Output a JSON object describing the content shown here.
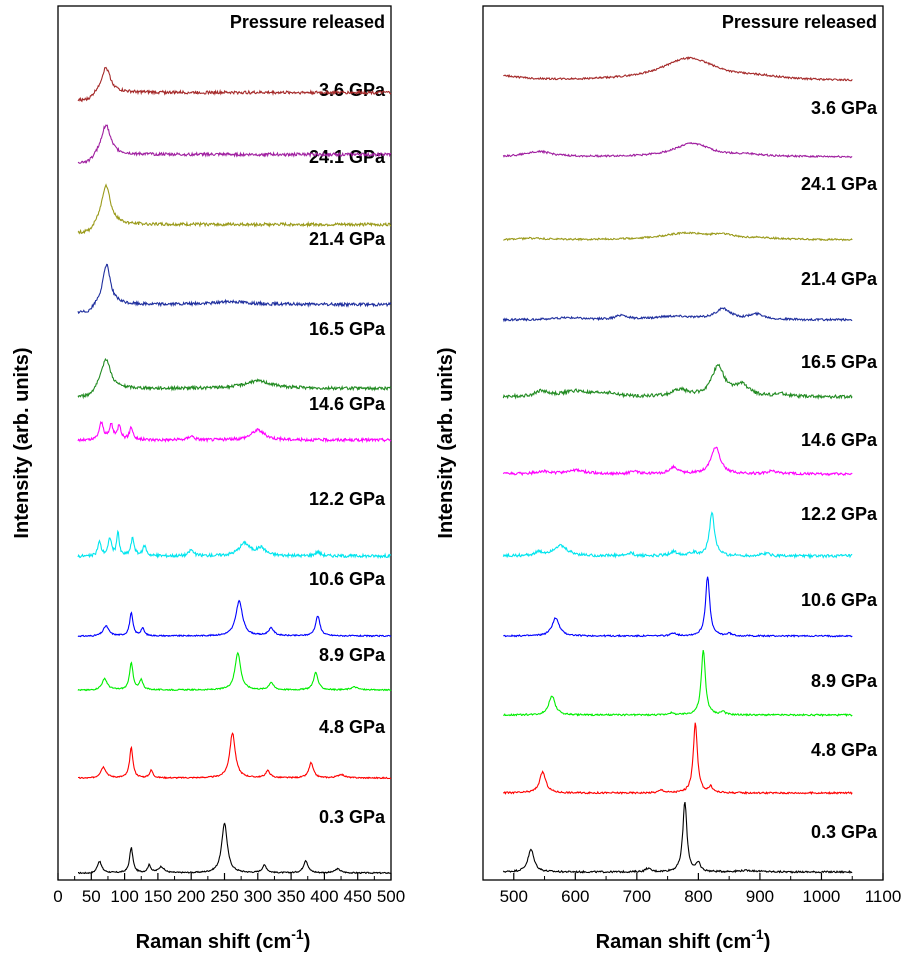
{
  "chart_data": [
    {
      "type": "line",
      "panel": "left",
      "xlabel_main": "Raman shift (cm",
      "xlabel_sup": "-1",
      "xlabel_tail": ")",
      "ylabel": "Intensity (arb. units)",
      "xlim": [
        0,
        500
      ],
      "xticks": [
        "0",
        "50",
        "100",
        "150",
        "200",
        "250",
        "300",
        "350",
        "400",
        "450",
        "500"
      ],
      "yticks_shown": false,
      "series": [
        {
          "name": "0.3 GPa",
          "color": "#000000",
          "peaks": [
            [
              62,
              0.25,
              4
            ],
            [
              110,
              0.5,
              3
            ],
            [
              137,
              0.15,
              3
            ],
            [
              155,
              0.12,
              5
            ],
            [
              250,
              1.0,
              5
            ],
            [
              310,
              0.15,
              4
            ],
            [
              372,
              0.25,
              4
            ],
            [
              420,
              0.08,
              5
            ]
          ]
        },
        {
          "name": "4.8 GPa",
          "color": "#ff0000",
          "peaks": [
            [
              68,
              0.22,
              5
            ],
            [
              110,
              0.6,
              3
            ],
            [
              140,
              0.15,
              3
            ],
            [
              262,
              0.9,
              5
            ],
            [
              315,
              0.14,
              4
            ],
            [
              380,
              0.3,
              4
            ],
            [
              425,
              0.07,
              6
            ]
          ]
        },
        {
          "name": "8.9 GPa",
          "color": "#00ee00",
          "peaks": [
            [
              70,
              0.22,
              5
            ],
            [
              110,
              0.55,
              3
            ],
            [
              125,
              0.2,
              3
            ],
            [
              270,
              0.75,
              5
            ],
            [
              320,
              0.15,
              4
            ],
            [
              387,
              0.35,
              4
            ],
            [
              445,
              0.06,
              6
            ]
          ]
        },
        {
          "name": "10.6 GPa",
          "color": "#0000ff",
          "peaks": [
            [
              72,
              0.2,
              5
            ],
            [
              110,
              0.45,
              3
            ],
            [
              127,
              0.15,
              3
            ],
            [
              272,
              0.7,
              6
            ],
            [
              320,
              0.15,
              5
            ],
            [
              390,
              0.4,
              4
            ]
          ]
        },
        {
          "name": "12.2 GPa",
          "color": "#00e5ee",
          "peaks": [
            [
              62,
              0.3,
              3
            ],
            [
              78,
              0.35,
              3
            ],
            [
              90,
              0.5,
              2
            ],
            [
              112,
              0.35,
              3
            ],
            [
              130,
              0.2,
              3
            ],
            [
              200,
              0.12,
              4
            ],
            [
              280,
              0.25,
              10
            ],
            [
              305,
              0.15,
              8
            ],
            [
              390,
              0.08,
              5
            ]
          ]
        },
        {
          "name": "14.6 GPa",
          "color": "#ff00ff",
          "peaks": [
            [
              65,
              0.35,
              4
            ],
            [
              80,
              0.3,
              3
            ],
            [
              92,
              0.3,
              3
            ],
            [
              110,
              0.25,
              3
            ],
            [
              200,
              0.08,
              5
            ],
            [
              300,
              0.2,
              12
            ]
          ]
        },
        {
          "name": "16.5 GPa",
          "color": "#228b22",
          "peaks": [
            [
              72,
              0.6,
              8
            ],
            [
              300,
              0.15,
              25
            ]
          ]
        },
        {
          "name": "21.4 GPa",
          "color": "#1f2f9e",
          "peaks": [
            [
              73,
              0.8,
              7
            ],
            [
              260,
              0.06,
              30
            ]
          ]
        },
        {
          "name": "24.1 GPa",
          "color": "#9a9a1a",
          "peaks": [
            [
              72,
              0.8,
              8
            ]
          ]
        },
        {
          "name": "3.6 GPa",
          "color": "#a020a0",
          "peaks": [
            [
              72,
              0.6,
              8
            ]
          ]
        },
        {
          "name": "Pressure released",
          "color": "#a52a2a",
          "peaks": [
            [
              72,
              0.5,
              8
            ]
          ]
        }
      ]
    },
    {
      "type": "line",
      "panel": "right",
      "xlabel_main": "Raman shift (cm",
      "xlabel_sup": "-1",
      "xlabel_tail": ")",
      "ylabel": "Intensity (arb. units)",
      "xlim": [
        450,
        1100
      ],
      "xticks": [
        "500",
        "600",
        "700",
        "800",
        "900",
        "1000",
        "1100"
      ],
      "yticks_shown": false,
      "series": [
        {
          "name": "0.3 GPa",
          "color": "#000000",
          "peaks": [
            [
              528,
              0.32,
              6
            ],
            [
              718,
              0.05,
              5
            ],
            [
              778,
              1.0,
              4
            ],
            [
              800,
              0.12,
              4
            ],
            [
              880,
              0.02,
              20
            ]
          ]
        },
        {
          "name": "4.8 GPa",
          "color": "#ff0000",
          "peaks": [
            [
              547,
              0.3,
              6
            ],
            [
              740,
              0.04,
              5
            ],
            [
              795,
              1.0,
              4
            ],
            [
              820,
              0.08,
              4
            ]
          ]
        },
        {
          "name": "8.9 GPa",
          "color": "#00ee00",
          "peaks": [
            [
              562,
              0.3,
              6
            ],
            [
              755,
              0.03,
              5
            ],
            [
              808,
              1.0,
              4
            ],
            [
              840,
              0.05,
              4
            ]
          ]
        },
        {
          "name": "10.6 GPa",
          "color": "#0000ff",
          "peaks": [
            [
              568,
              0.3,
              7
            ],
            [
              760,
              0.05,
              5
            ],
            [
              815,
              1.0,
              4
            ],
            [
              850,
              0.04,
              4
            ]
          ]
        },
        {
          "name": "12.2 GPa",
          "color": "#00e5ee",
          "peaks": [
            [
              540,
              0.06,
              8
            ],
            [
              575,
              0.2,
              14
            ],
            [
              690,
              0.05,
              6
            ],
            [
              760,
              0.08,
              8
            ],
            [
              790,
              0.06,
              8
            ],
            [
              822,
              0.85,
              5
            ],
            [
              910,
              0.05,
              8
            ]
          ]
        },
        {
          "name": "14.6 GPa",
          "color": "#ff00ff",
          "peaks": [
            [
              545,
              0.06,
              10
            ],
            [
              600,
              0.08,
              20
            ],
            [
              695,
              0.07,
              6
            ],
            [
              760,
              0.15,
              8
            ],
            [
              828,
              0.6,
              9
            ],
            [
              920,
              0.06,
              10
            ]
          ]
        },
        {
          "name": "16.5 GPa",
          "color": "#228b22",
          "peaks": [
            [
              545,
              0.1,
              12
            ],
            [
              600,
              0.1,
              25
            ],
            [
              650,
              0.06,
              20
            ],
            [
              770,
              0.12,
              15
            ],
            [
              832,
              0.55,
              12
            ],
            [
              870,
              0.2,
              15
            ],
            [
              935,
              0.05,
              10
            ]
          ]
        },
        {
          "name": "21.4 GPa",
          "color": "#1f2f9e",
          "peaks": [
            [
              590,
              0.06,
              30
            ],
            [
              675,
              0.12,
              10
            ],
            [
              760,
              0.1,
              40
            ],
            [
              840,
              0.3,
              15
            ],
            [
              895,
              0.15,
              15
            ]
          ]
        },
        {
          "name": "24.1 GPa",
          "color": "#9a9a1a",
          "peaks": [
            [
              530,
              0.05,
              25
            ],
            [
              780,
              0.22,
              50
            ],
            [
              840,
              0.12,
              20
            ],
            [
              900,
              0.05,
              30
            ]
          ]
        },
        {
          "name": "3.6 GPa",
          "color": "#a020a0",
          "peaks": [
            [
              540,
              0.18,
              25
            ],
            [
              790,
              0.45,
              35
            ],
            [
              880,
              0.06,
              30
            ]
          ]
        },
        {
          "name": "Pressure released",
          "color": "#a52a2a",
          "peaks": [
            [
              480,
              0.15,
              40
            ],
            [
              785,
              0.75,
              55
            ],
            [
              900,
              0.08,
              40
            ]
          ]
        }
      ]
    }
  ]
}
